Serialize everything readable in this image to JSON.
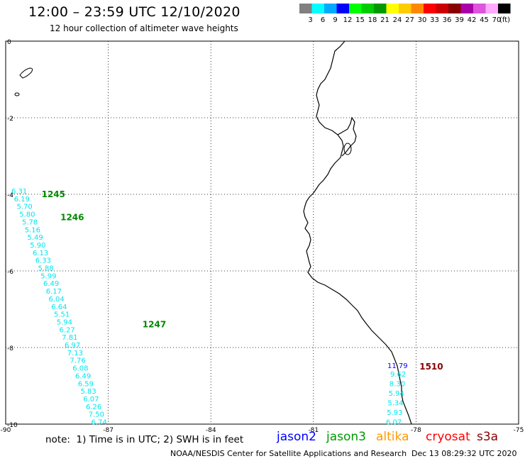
{
  "header": {
    "title": "12:00 – 23:59 UTC 12/10/2020",
    "subtitle": "12 hour collection of altimeter wave heights"
  },
  "legend": {
    "unit": "(ft)",
    "bins": [
      {
        "label": "3",
        "color": "#808080"
      },
      {
        "label": "6",
        "color": "#00ffff"
      },
      {
        "label": "9",
        "color": "#00aaff"
      },
      {
        "label": "12",
        "color": "#0000ff"
      },
      {
        "label": "15",
        "color": "#00ff00"
      },
      {
        "label": "18",
        "color": "#00cc00"
      },
      {
        "label": "21",
        "color": "#009900"
      },
      {
        "label": "24",
        "color": "#ffff00"
      },
      {
        "label": "27",
        "color": "#ffcc00"
      },
      {
        "label": "30",
        "color": "#ff8800"
      },
      {
        "label": "33",
        "color": "#ff0000"
      },
      {
        "label": "36",
        "color": "#cc0000"
      },
      {
        "label": "39",
        "color": "#880000"
      },
      {
        "label": "42",
        "color": "#aa00aa"
      },
      {
        "label": "45",
        "color": "#dd55dd"
      },
      {
        "label": "70",
        "color": "#ffaaff"
      },
      {
        "label": "",
        "color": "#000000"
      }
    ]
  },
  "map": {
    "lon_range": [
      -90,
      -75
    ],
    "lat_range": [
      -10,
      0
    ],
    "lon_ticks": [
      "-90",
      "-87",
      "-84",
      "-81",
      "-78",
      "-75"
    ],
    "lat_ticks": [
      "0",
      "-2",
      "-4",
      "-6",
      "-8",
      "-10"
    ],
    "grid": "dotted"
  },
  "tracks": {
    "jason3_west": {
      "color": "#00e5ee",
      "time_labels": [
        {
          "text": "1245",
          "lon": -88.95,
          "lat": -4.0
        },
        {
          "text": "1246",
          "lon": -88.4,
          "lat": -4.6
        },
        {
          "text": "1247",
          "lon": -86.0,
          "lat": -7.4
        }
      ],
      "values": [
        "6.31",
        "6.19",
        "5.70",
        "5.80",
        "5.78",
        "5.16",
        "5.49",
        "5.90",
        "6.13",
        "6.33",
        "5.88",
        "5.99",
        "6.49",
        "6.17",
        "6.04",
        "6.64",
        "5.51",
        "5.94",
        "6.27",
        "7.81",
        "6.97",
        "7.13",
        "7.76",
        "6.08",
        "6.49",
        "6.59",
        "5.83",
        "6.07",
        "6.26",
        "7.50",
        "6.74"
      ]
    },
    "cryosat_east": {
      "time_label": {
        "text": "1510",
        "lon": -77.9,
        "lat": -8.5
      },
      "first": {
        "text": "11.79",
        "color": "#0000ff"
      },
      "values": [
        "9.62",
        "8.30",
        "5.94",
        "5.34",
        "5.93",
        "6.07"
      ]
    }
  },
  "footer": {
    "note": "note:  1) Time is in UTC; 2) SWH is in feet",
    "satellites": [
      {
        "name": "jason2",
        "color": "#0000ff"
      },
      {
        "name": "jason3",
        "color": "#009900"
      },
      {
        "name": "altika",
        "color": "#ff9900"
      },
      {
        "name": "cryosat",
        "color": "#ff0000"
      },
      {
        "name": "s3a",
        "color": "#880000"
      }
    ],
    "credit": "NOAA/NESDIS Center for Satellite Applications and Research",
    "timestamp": "Dec 13 08:29:32 UTC 2020"
  }
}
